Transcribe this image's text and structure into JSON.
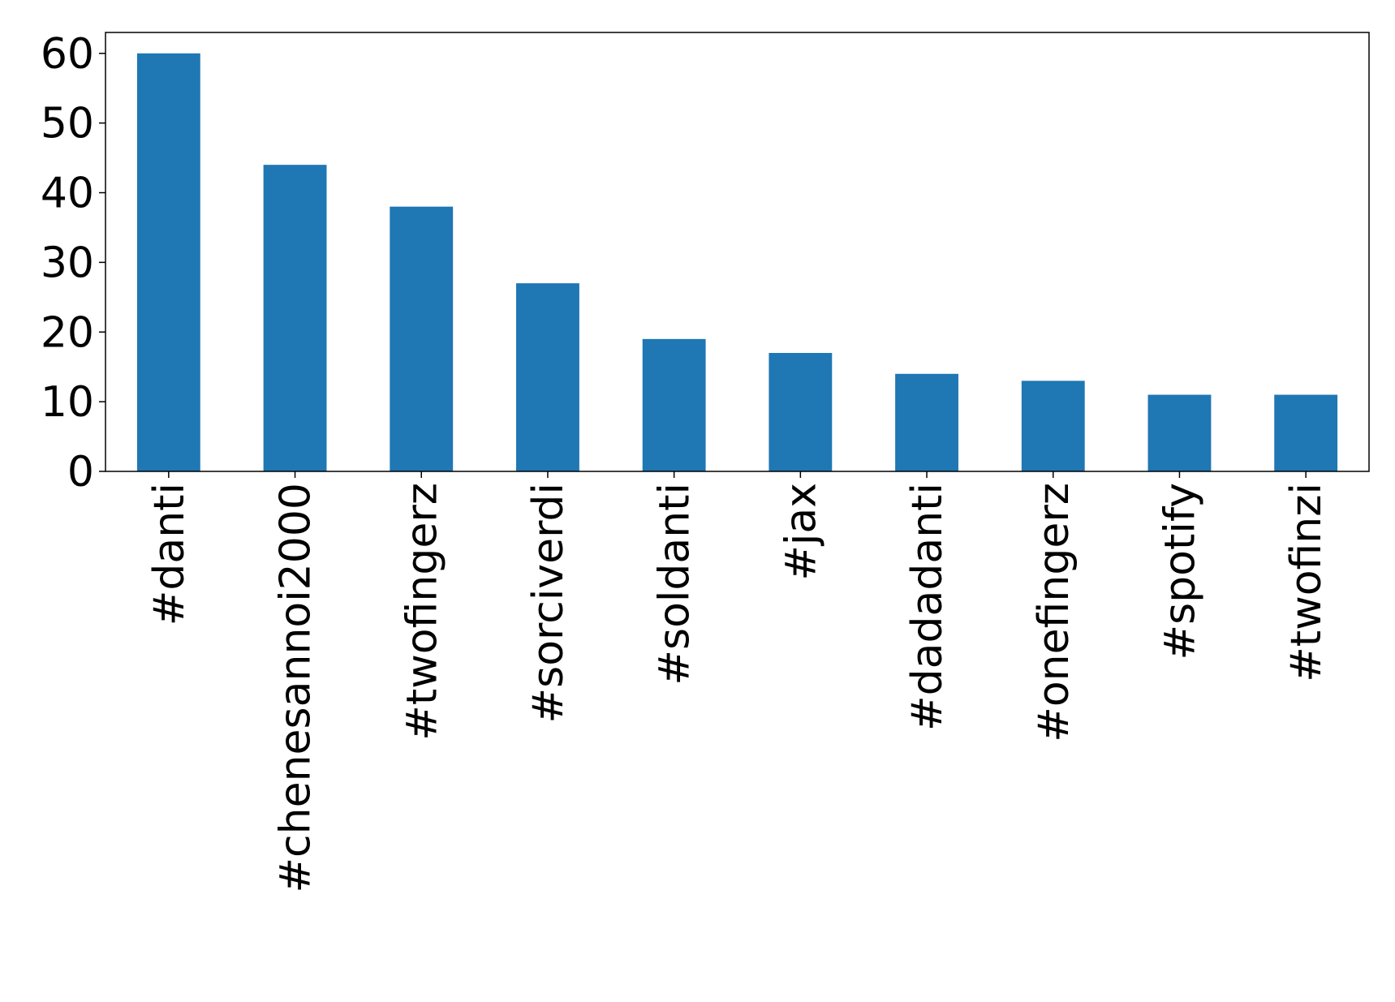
{
  "chart_data": {
    "type": "bar",
    "categories": [
      "#danti",
      "#chenesannoi2000",
      "#twofingerz",
      "#sorciverdi",
      "#soldanti",
      "#jax",
      "#dadadanti",
      "#onefingerz",
      "#spotify",
      "#twofinzi"
    ],
    "values": [
      60,
      44,
      38,
      27,
      19,
      17,
      14,
      13,
      11,
      11
    ],
    "color": "#1f77b4",
    "ylim": [
      0,
      63
    ],
    "yticks": [
      0,
      10,
      20,
      30,
      40,
      50,
      60
    ],
    "grid": false
  }
}
